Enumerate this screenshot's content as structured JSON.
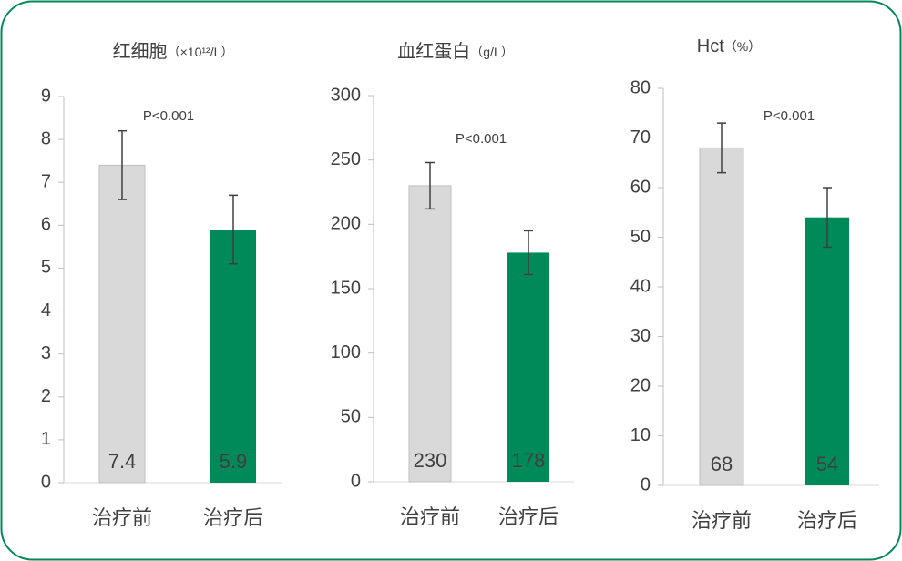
{
  "chart_data": [
    {
      "type": "bar",
      "title": "红细胞",
      "unit": "（×10¹²/L）",
      "annotation": "P<0.001",
      "categories": [
        "治疗前",
        "治疗后"
      ],
      "values": [
        7.4,
        5.9
      ],
      "errors": [
        0.8,
        0.8
      ],
      "colors": [
        "#d9d9d9",
        "#008a5a"
      ],
      "ylim": [
        0,
        9
      ],
      "yticks": [
        0,
        1,
        2,
        3,
        4,
        5,
        6,
        7,
        8,
        9
      ]
    },
    {
      "type": "bar",
      "title": "血红蛋白",
      "unit": "（g/L）",
      "annotation": "P<0.001",
      "categories": [
        "治疗前",
        "治疗后"
      ],
      "values": [
        230,
        178
      ],
      "errors": [
        18,
        17
      ],
      "colors": [
        "#d9d9d9",
        "#008a5a"
      ],
      "ylim": [
        0,
        300
      ],
      "yticks": [
        0,
        50,
        100,
        150,
        200,
        250,
        300
      ]
    },
    {
      "type": "bar",
      "title": "Hct",
      "unit": "（%）",
      "annotation": "P<0.001",
      "categories": [
        "治疗前",
        "治疗后"
      ],
      "values": [
        68,
        54
      ],
      "errors": [
        5,
        6
      ],
      "colors": [
        "#d9d9d9",
        "#008a5a"
      ],
      "ylim": [
        0,
        80
      ],
      "yticks": [
        0,
        10,
        20,
        30,
        40,
        50,
        60,
        70,
        80
      ]
    }
  ]
}
